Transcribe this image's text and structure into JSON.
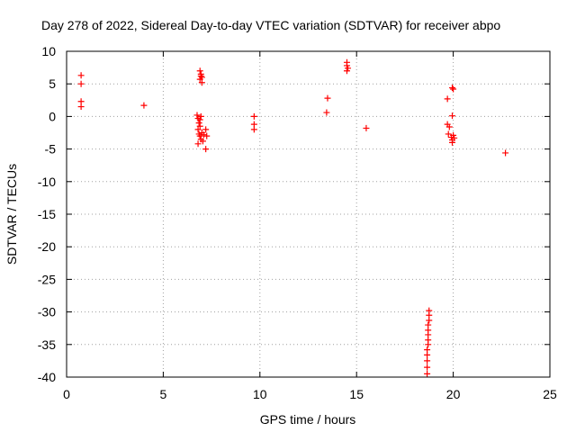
{
  "chart_data": {
    "type": "scatter",
    "title": "Day 278 of 2022, Sidereal Day-to-day VTEC variation (SDTVAR) for receiver abpo",
    "xlabel": "GPS time / hours",
    "ylabel": "SDTVAR / TECUs",
    "xlim": [
      0,
      25
    ],
    "ylim": [
      -40,
      10
    ],
    "xticks": [
      0,
      5,
      10,
      15,
      20,
      25
    ],
    "yticks": [
      10,
      5,
      0,
      -5,
      -10,
      -15,
      -20,
      -25,
      -30,
      -35,
      -40
    ],
    "grid": true,
    "marker": "+",
    "color": "#ff0000",
    "series": [
      {
        "name": "SDTVAR",
        "points": [
          [
            0.75,
            6.3
          ],
          [
            0.75,
            5.0
          ],
          [
            0.75,
            2.3
          ],
          [
            0.75,
            1.5
          ],
          [
            4.0,
            1.7
          ],
          [
            6.75,
            0.2
          ],
          [
            6.8,
            -0.3
          ],
          [
            6.85,
            -1.0
          ],
          [
            6.9,
            -0.5
          ],
          [
            6.95,
            0.0
          ],
          [
            6.8,
            -2.0
          ],
          [
            6.85,
            -2.7
          ],
          [
            6.9,
            -3.0
          ],
          [
            6.95,
            -3.5
          ],
          [
            6.8,
            -4.2
          ],
          [
            6.9,
            -1.5
          ],
          [
            7.0,
            -2.5
          ],
          [
            7.05,
            -3.8
          ],
          [
            7.1,
            -2.8
          ],
          [
            7.2,
            -2.0
          ],
          [
            7.25,
            -3.0
          ],
          [
            7.2,
            -5.0
          ],
          [
            6.9,
            7.0
          ],
          [
            6.95,
            6.5
          ],
          [
            7.0,
            6.0
          ],
          [
            6.9,
            5.7
          ],
          [
            7.0,
            5.2
          ],
          [
            6.95,
            6.2
          ],
          [
            9.7,
            0.0
          ],
          [
            9.7,
            -1.2
          ],
          [
            9.7,
            -2.0
          ],
          [
            13.5,
            2.8
          ],
          [
            13.45,
            0.6
          ],
          [
            14.5,
            8.3
          ],
          [
            14.5,
            7.8
          ],
          [
            14.55,
            7.4
          ],
          [
            14.5,
            7.0
          ],
          [
            15.5,
            -1.8
          ],
          [
            18.75,
            -29.8
          ],
          [
            18.75,
            -30.5
          ],
          [
            18.75,
            -31.3
          ],
          [
            18.7,
            -32.0
          ],
          [
            18.7,
            -32.8
          ],
          [
            18.7,
            -33.5
          ],
          [
            18.7,
            -34.3
          ],
          [
            18.7,
            -35.0
          ],
          [
            18.65,
            -35.8
          ],
          [
            18.65,
            -36.6
          ],
          [
            18.65,
            -37.5
          ],
          [
            18.65,
            -38.5
          ],
          [
            18.65,
            -39.5
          ],
          [
            19.7,
            2.7
          ],
          [
            19.95,
            4.4
          ],
          [
            20.0,
            4.2
          ],
          [
            19.95,
            0.1
          ],
          [
            19.7,
            -1.2
          ],
          [
            19.8,
            -1.6
          ],
          [
            19.75,
            -2.7
          ],
          [
            19.9,
            -3.2
          ],
          [
            20.0,
            -2.9
          ],
          [
            19.95,
            -3.6
          ],
          [
            20.05,
            -3.3
          ],
          [
            19.95,
            -4.0
          ],
          [
            22.7,
            -5.6
          ]
        ]
      }
    ]
  }
}
